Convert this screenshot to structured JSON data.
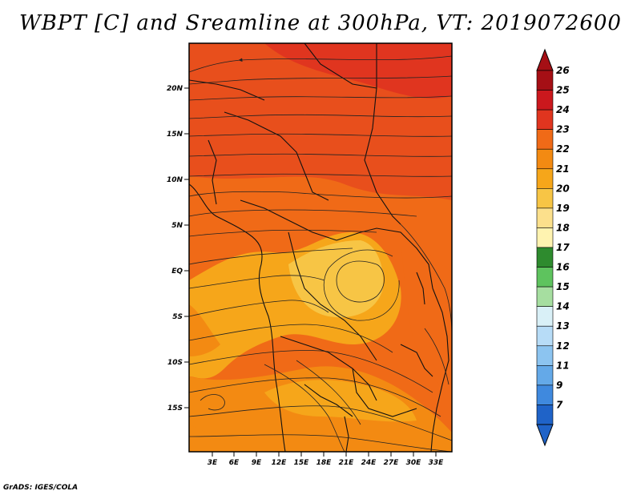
{
  "title": "WBPT [C] and Sreamline at 300hPa, VT: 2019072600",
  "footer": "GrADS: IGES/COLA",
  "map": {
    "lat_labels": [
      "20N",
      "15N",
      "10N",
      "5N",
      "EQ",
      "5S",
      "10S",
      "15S"
    ],
    "lon_labels": [
      "3E",
      "6E",
      "9E",
      "12E",
      "15E",
      "18E",
      "21E",
      "24E",
      "27E",
      "30E",
      "33E"
    ]
  },
  "colorbar": {
    "levels": [
      "26",
      "25",
      "24",
      "23",
      "22",
      "21",
      "20",
      "19",
      "18",
      "17",
      "16",
      "15",
      "14",
      "13",
      "12",
      "11",
      "9",
      "7"
    ],
    "colors": [
      "#a50f15",
      "#cb181d",
      "#e0351f",
      "#f06a17",
      "#f38a12",
      "#f6a61a",
      "#f7c545",
      "#fce08c",
      "#fff3b0",
      "#2e8b2e",
      "#5ec35e",
      "#a6dea0",
      "#d9f0f7",
      "#b7dcf7",
      "#8cc4f0",
      "#64a9e8",
      "#3f89de",
      "#1f63c8"
    ]
  },
  "legend": {
    "top_arrow_color": "#a50f15",
    "bottom_arrow_color": "#1f63c8"
  }
}
